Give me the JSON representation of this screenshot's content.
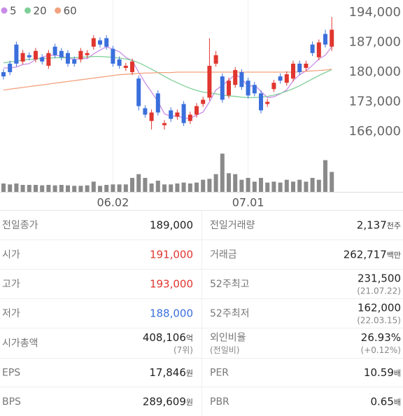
{
  "chart_data": {
    "type": "candlestick",
    "categories": [
      null,
      null,
      null,
      null,
      null,
      null,
      null,
      null,
      null,
      null,
      null,
      null,
      null,
      null,
      null,
      null,
      null,
      "06.02",
      null,
      null,
      null,
      null,
      null,
      null,
      null,
      null,
      null,
      null,
      null,
      null,
      null,
      null,
      null,
      null,
      null,
      null,
      null,
      null,
      "07.01",
      null,
      null,
      null,
      null,
      null,
      null,
      null,
      null,
      null,
      null,
      null,
      null,
      null
    ],
    "open": [
      180000,
      182000,
      186500,
      182500,
      184000,
      183000,
      183500,
      181500,
      186000,
      185000,
      184500,
      183000,
      183000,
      184000,
      186000,
      187500,
      188000,
      185500,
      183000,
      181000,
      180000,
      178500,
      171500,
      168500,
      175000,
      167500,
      171000,
      169500,
      172500,
      168500,
      170000,
      172500,
      174000,
      182000,
      179000,
      174500,
      177000,
      180000,
      178000,
      177000,
      175000,
      172500,
      176000,
      179000,
      177500,
      178500,
      182000,
      181000,
      186500,
      183500,
      189000,
      186000
    ],
    "high": [
      180700,
      182700,
      187200,
      185200,
      184700,
      185700,
      184200,
      185200,
      186700,
      185700,
      185200,
      183700,
      185700,
      185200,
      188700,
      188200,
      188700,
      186200,
      183700,
      182200,
      183200,
      179200,
      172200,
      171200,
      175700,
      168700,
      171700,
      171200,
      173200,
      170700,
      172700,
      174200,
      188000,
      185000,
      179700,
      178700,
      181200,
      180700,
      178700,
      177700,
      175700,
      173700,
      178200,
      179700,
      180200,
      182700,
      182700,
      182700,
      187200,
      187700,
      190000,
      193000
    ],
    "low": [
      178300,
      179300,
      181300,
      181800,
      182800,
      182300,
      181800,
      180800,
      183300,
      182800,
      181300,
      181300,
      182300,
      183300,
      185300,
      185800,
      185300,
      181300,
      180800,
      180300,
      179300,
      171000,
      169300,
      166500,
      169800,
      166500,
      168300,
      168800,
      167300,
      167800,
      169300,
      171800,
      173300,
      181300,
      172800,
      173800,
      176300,
      175800,
      173800,
      174300,
      170300,
      171800,
      175300,
      177300,
      176800,
      177800,
      179300,
      180300,
      183800,
      182800,
      185800,
      185000
    ],
    "close": [
      179000,
      180000,
      182000,
      184500,
      183500,
      185000,
      182500,
      184500,
      184000,
      183500,
      182000,
      182000,
      185000,
      184500,
      188000,
      186500,
      186000,
      182000,
      181500,
      181500,
      182500,
      172000,
      170000,
      170500,
      170500,
      168000,
      169000,
      170500,
      168000,
      170000,
      172000,
      173500,
      181500,
      184000,
      173500,
      178000,
      180500,
      176500,
      174500,
      175000,
      171000,
      173000,
      177500,
      178000,
      179500,
      182000,
      180000,
      182000,
      184500,
      187000,
      186500,
      190000
    ],
    "up_color": "#e0362f",
    "down_color": "#3a6fdc",
    "series": [
      {
        "name": "5",
        "color": "#c98ce6",
        "values": [
          181000,
          181000,
          181200,
          181800,
          182000,
          183000,
          183500,
          184000,
          184000,
          183800,
          183300,
          183000,
          183200,
          183200,
          184300,
          185200,
          186000,
          185400,
          184800,
          183500,
          182700,
          180000,
          177500,
          175300,
          173100,
          170200,
          169600,
          169700,
          169200,
          169100,
          169900,
          170600,
          173000,
          175800,
          176900,
          178100,
          179500,
          178500,
          176600,
          176900,
          175500,
          174000,
          174200,
          174900,
          175800,
          178000,
          179400,
          180300,
          181600,
          183100,
          184000,
          186000
        ]
      },
      {
        "name": "20",
        "color": "#7fcf98",
        "values": [
          182200,
          182400,
          182600,
          182800,
          183000,
          183100,
          183200,
          183300,
          183400,
          183400,
          183400,
          183400,
          183500,
          183600,
          183700,
          183700,
          183600,
          183500,
          183300,
          183100,
          182800,
          182200,
          181500,
          180700,
          179900,
          179000,
          178200,
          177500,
          176800,
          176200,
          175700,
          175300,
          175100,
          174900,
          174600,
          174400,
          174300,
          174100,
          174000,
          174000,
          174100,
          174300,
          174600,
          175000,
          175500,
          176100,
          176800,
          177600,
          178400,
          179200,
          179900,
          180600
        ]
      },
      {
        "name": "60",
        "color": "#f2a27e",
        "values": [
          175800,
          176000,
          176200,
          176400,
          176600,
          176800,
          177000,
          177200,
          177400,
          177600,
          177800,
          178000,
          178200,
          178400,
          178600,
          178800,
          179000,
          179200,
          179400,
          179500,
          179600,
          179700,
          179800,
          179800,
          179900,
          179900,
          179900,
          180000,
          180000,
          180000,
          180000,
          180000,
          180000,
          180000,
          180000,
          180000,
          180000,
          180000,
          180000,
          180000,
          180000,
          180000,
          180000,
          180000,
          180000,
          180000,
          180100,
          180200,
          180300,
          180400,
          180500,
          180700
        ]
      }
    ],
    "volume": [
      900,
      800,
      900,
      750,
      750,
      750,
      700,
      750,
      700,
      750,
      700,
      650,
      650,
      700,
      1100,
      650,
      750,
      800,
      800,
      800,
      1500,
      1900,
      1500,
      900,
      1200,
      800,
      800,
      900,
      1000,
      900,
      1000,
      1300,
      1400,
      1900,
      4100,
      2000,
      1900,
      1300,
      1500,
      1100,
      1500,
      1000,
      1100,
      1000,
      1300,
      1100,
      1300,
      1100,
      1500,
      1300,
      3400,
      2137
    ],
    "volume_color": "#8a8a8a",
    "volume_ylim": [
      0,
      4500
    ],
    "ylim": [
      164000,
      197000
    ],
    "yticks": [
      {
        "value": 194000,
        "label": "194,000"
      },
      {
        "value": 187000,
        "label": "187,000"
      },
      {
        "value": 180000,
        "label": "180,000"
      },
      {
        "value": 173000,
        "label": "173,000"
      },
      {
        "value": 166000,
        "label": "166,000"
      }
    ]
  },
  "stats": {
    "rows": [
      {
        "left": {
          "label": "전일종가",
          "value": "189,000"
        },
        "right": {
          "label": "전일거래량",
          "value": "2,137",
          "unit": "천주"
        }
      },
      {
        "left": {
          "label": "시가",
          "value": "191,000",
          "color": "#e0362f"
        },
        "right": {
          "label": "거래금",
          "value": "262,717",
          "unit": "백만"
        }
      },
      {
        "left": {
          "label": "고가",
          "value": "193,000",
          "color": "#e0362f"
        },
        "right": {
          "label": "52주최고",
          "value": "231,500",
          "sub": "(21.07.22)"
        }
      },
      {
        "left": {
          "label": "저가",
          "value": "188,000",
          "color": "#3a6fdc"
        },
        "right": {
          "label": "52주최저",
          "value": "162,000",
          "sub": "(22.03.15)"
        }
      },
      {
        "left": {
          "label": "시가총액",
          "value": "408,106",
          "unit": "억",
          "sub": "(7위)"
        },
        "right": {
          "label": "외인비율",
          "label_sub": "(전일비)",
          "value": "26.93%",
          "sub": "(+0.12%)"
        }
      },
      {
        "left": {
          "label": "EPS",
          "value": "17,846",
          "unit": "원"
        },
        "right": {
          "label": "PER",
          "value": "10.59",
          "unit": "배"
        }
      },
      {
        "left": {
          "label": "BPS",
          "value": "289,609",
          "unit": "원"
        },
        "right": {
          "label": "PBR",
          "value": "0.65",
          "unit": "배"
        }
      }
    ]
  }
}
